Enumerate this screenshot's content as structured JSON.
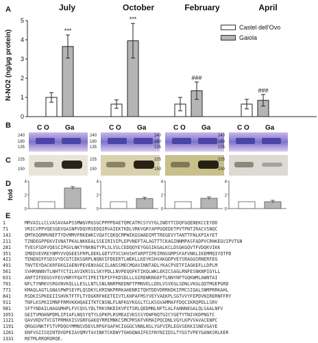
{
  "panels": {
    "A": "A",
    "B": "B",
    "C": "C",
    "D": "D",
    "E": "E"
  },
  "months": [
    "July",
    "October",
    "February",
    "April"
  ],
  "legend": [
    {
      "label": "Castel dell'Ovo",
      "color": "#ffffff"
    },
    {
      "label": "Gaiola",
      "color": "#b5b5b5"
    }
  ],
  "chart_data": {
    "type": "bar",
    "ylabel": "N-NO2 (ng/µg protein)",
    "ylim": [
      0,
      5
    ],
    "yticks": [
      0,
      1,
      2,
      3,
      4,
      5
    ],
    "categories": [
      "July",
      "October",
      "February",
      "April"
    ],
    "series": [
      {
        "name": "Castel dell'Ovo",
        "values": [
          1.0,
          0.65,
          0.65,
          0.65
        ],
        "errors": [
          0.25,
          0.22,
          0.35,
          0.25
        ]
      },
      {
        "name": "Gaiola",
        "values": [
          3.65,
          3.95,
          1.35,
          0.85
        ],
        "errors": [
          0.6,
          0.9,
          0.45,
          0.3
        ]
      }
    ],
    "annotations": [
      {
        "month": "July",
        "text": "***"
      },
      {
        "month": "October",
        "text": "***"
      },
      {
        "month": "February",
        "text": "###"
      },
      {
        "month": "April",
        "text": "###"
      }
    ]
  },
  "blot_lane_labels": {
    "co": "C O",
    "ga": "Ga"
  },
  "blots_b": [
    {
      "mw": [
        "240",
        "180",
        "135"
      ]
    },
    {
      "mw": [
        "240",
        "180",
        "135"
      ]
    },
    {
      "mw": [
        "240",
        "180",
        "135"
      ]
    },
    {
      "mw": [
        "240",
        "180",
        "135"
      ]
    }
  ],
  "blots_c": [
    {
      "mw": [
        "225",
        "150"
      ]
    },
    {
      "mw": [
        "225",
        "150"
      ]
    },
    {
      "mw": [
        "225",
        "150"
      ]
    },
    {
      "mw": [
        "225",
        "150"
      ]
    }
  ],
  "fold_chart": {
    "ylabel": "fold",
    "yticks": [
      "0",
      "2",
      "4"
    ],
    "ylim": [
      0,
      4
    ],
    "panels": [
      {
        "co": 1.0,
        "ga": 3.0
      },
      {
        "co": 1.0,
        "ga": 1.45
      },
      {
        "co": 1.0,
        "ga": 1.5
      },
      {
        "co": 1.0,
        "ga": 1.0
      }
    ]
  },
  "sequence": [
    {
      "n": "1",
      "t": "MRVAILLCLVASAVAAPSSMWGVRGSGCPPPPDAETQMCATRCSYVYGLIWDYTCDQFGQENEKCCEYDD"
    },
    {
      "n": "71",
      "t": "VRICVPPVQESGEVGASNPVDQVRSEDQIRVAIEKTKDLVRKVGRYAPPGQEDETPVTPNTIRACVSNQC"
    },
    {
      "n": "141",
      "t": "QMTKQQRMVNEFTYDVMMVFRKEWKCVQATCQKQCMPWIKGSWADIMTTREGEVYTANTTFNLKPIAYET"
    },
    {
      "n": "211",
      "t": "TINDEGPPEKVIVNATPKALNKKEALSSEIRIVIPLEPVNEFTALAGTTTCKAGINNMPASFADPVCRHKEGVIPVTGN"
    },
    {
      "n": "281",
      "t": "TVESFSDFVQESCIPGVLNKTYNKNGTYPLSLVSLCEDQQYEYGGSIKGALKCLDSGKGQVTFVDQKVIKK"
    },
    {
      "n": "351",
      "t": "IMEDVEVREYNMYVVQGEESFRPLDEKLGDTVTVCSHVSHTARPTIPEIRNSGMPSFAFVNKLIKEMMQIYQTPD"
    },
    {
      "n": "421",
      "t": "TENENIFFSDSVYDCGTCEKSGRPLNQNVIFDEERTLWEKLLKEYKSHVAKGDPVEYSRAGGSRNERFEG"
    },
    {
      "n": "491",
      "t": "TNVTEYDACKRFEKGIAENVPEVENVAGCILANSSMECMQAVINNTADLYKACPVETFIAGKEFLLDPLM"
    },
    {
      "n": "561",
      "t": "SVHRNNNVTLNHTYCTILAVIKRSSLSKYPDLLNVPEQQFKTIKQLWKLEKICSAGLRNFESNKNPIGYLL"
    },
    {
      "n": "631",
      "t": "ANFTIFEEGSVFESVNRYFQATCIPEITEPIFFKDSDLLLGIREWKNGEFTLNNYNFTGQKWMLAWNTAI"
    },
    {
      "n": "701",
      "t": "NFLTYNRKVSRGVNVKQLLLESLLNTLSNLNNRPNEDNFTPMNVELLDDLVSVEGLSDNLVKGLQQTMGEPGRD"
    },
    {
      "n": "771",
      "t": "KMAQLAGTLGNASPWPSEYPLQSDKYLKMINKPRRKAHENRITQHTDDVDRRKDKIFMCSIQALSNMPRRKAHL"
    },
    {
      "n": "841",
      "t": "RSDKISPKEEIISHVKTFTFLTYDGKRFHEETEIVTLKHPAFMSYVEYVAEKPLSGTVVYFEPDVNIRERNFFRY"
    },
    {
      "n": "911",
      "t": "TNFLKSPKIIMNFFRMVKKHQAEITKTCNSNLFLNFKGYKGSLTCLKSGVAMMAFFDQCIKRQPDLLSRV"
    },
    {
      "n": "981",
      "t": "SFTYNDAILNAGGMHPLFVCQVLYDLTRKVNKDIKVPITSRLQEDMNLNFTLALFANNNEGALQLSAALNFV"
    },
    {
      "n": "1051",
      "t": "GEITVMGKNPDMLIPIAFLNQSYQTYLGPKPLRSMEAIVKSSSYDWFNQTGICYGETYTNIVKDPNGTC"
    },
    {
      "n": "1121",
      "t": "QAVVKDVTVCGTPRMKKISVGRFGAKQYRMIMNKCSMCPRSKFVKMAIPQCDNLVGYLKPVVAVACENPC"
    },
    {
      "n": "1191",
      "t": "QRGGVNKTFSTVPDQGYMMNSVDEVLRPGFGAFHCIGGGCVNNLNSLYGFVIRLEGVSEKKISNEVGAYE"
    },
    {
      "n": "1261",
      "t": "ENFVGIISQINTDVDPEIAVQMVTAVINKTCKDWYTGHGQWAIFEIFNYNIIDSLTYGSTVPEYGANKSRLKER"
    },
    {
      "n": "1331",
      "t": "RETMLRRQRQRQE."
    }
  ]
}
